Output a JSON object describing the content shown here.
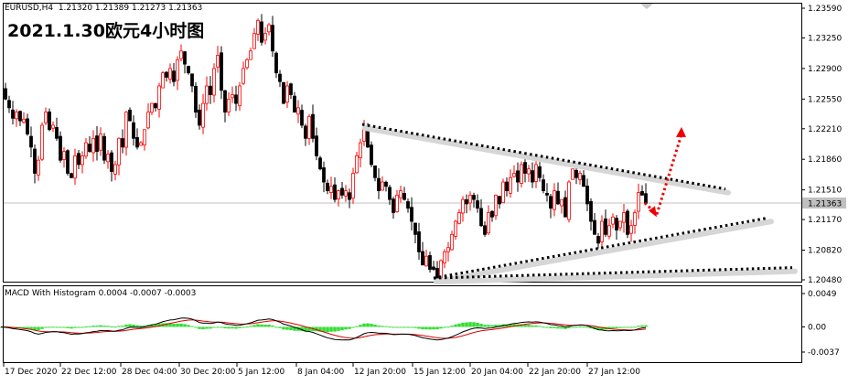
{
  "chart_title": "2021.1.30欧元4小时图",
  "symbol_line": "EURUSD,H4  1.21320 1.21389 1.21273 1.21363",
  "macd_label": "MACD With Histogram 0.0004 -0.0007 -0.0003",
  "current_price": "1.21363",
  "colors": {
    "bull_candle": "#ff0000",
    "bear_candle": "#000000",
    "histogram": "#33dd33",
    "macd_line": "#000000",
    "signal_line": "#dd0000",
    "trendline": "#000000",
    "arrow": "#ee0000",
    "price_box_bg": "#c0c0c0"
  },
  "price_axis": {
    "labels": [
      "1.23590",
      "1.23250",
      "1.22900",
      "1.22550",
      "1.22210",
      "1.21860",
      "1.21510",
      "1.21170",
      "1.20820",
      "1.20480"
    ]
  },
  "macd_axis": {
    "labels": [
      "0.0049",
      "0.00",
      "-0.0037"
    ]
  },
  "time_axis": {
    "labels": [
      "17 Dec 2020",
      "22 Dec 12:00",
      "28 Dec 04:00",
      "30 Dec 20:00",
      "5 Jan 12:00",
      "8 Jan 04:00",
      "12 Jan 20:00",
      "15 Jan 12:00",
      "20 Jan 04:00",
      "22 Jan 20:00",
      "27 Jan 12:00"
    ]
  },
  "chart_data": {
    "type": "candlestick",
    "title": "2021.1.30欧元4小时图",
    "symbol": "EURUSD",
    "timeframe": "H4",
    "last_bar": {
      "open": 1.2132,
      "high": 1.21389,
      "low": 1.21273,
      "close": 1.21363
    },
    "ylim": [
      1.2045,
      1.2362
    ],
    "y_ticks": [
      1.2359,
      1.2325,
      1.229,
      1.2255,
      1.2221,
      1.2186,
      1.2151,
      1.2117,
      1.2082,
      1.2048
    ],
    "x_tick_labels": [
      "17 Dec 2020",
      "22 Dec 12:00",
      "28 Dec 04:00",
      "30 Dec 20:00",
      "5 Jan 12:00",
      "8 Jan 04:00",
      "12 Jan 20:00",
      "15 Jan 12:00",
      "20 Jan 04:00",
      "22 Jan 20:00",
      "27 Jan 12:00"
    ],
    "close_path": [
      [
        1,
        1.2267
      ],
      [
        6,
        1.2255
      ],
      [
        10,
        1.2245
      ],
      [
        14,
        1.2233
      ],
      [
        18,
        1.224
      ],
      [
        22,
        1.223
      ],
      [
        26,
        1.2232
      ],
      [
        30,
        1.2215
      ],
      [
        34,
        1.22
      ],
      [
        38,
        1.217
      ],
      [
        42,
        1.2185
      ],
      [
        46,
        1.2225
      ],
      [
        50,
        1.224
      ],
      [
        54,
        1.222
      ],
      [
        58,
        1.2225
      ],
      [
        62,
        1.221
      ],
      [
        66,
        1.2185
      ],
      [
        70,
        1.2195
      ],
      [
        74,
        1.217
      ],
      [
        78,
        1.2165
      ],
      [
        82,
        1.219
      ],
      [
        86,
        1.218
      ],
      [
        90,
        1.219
      ],
      [
        94,
        1.2205
      ],
      [
        98,
        1.2195
      ],
      [
        102,
        1.221
      ],
      [
        106,
        1.2195
      ],
      [
        110,
        1.2215
      ],
      [
        114,
        1.2185
      ],
      [
        118,
        1.2192
      ],
      [
        122,
        1.2172
      ],
      [
        126,
        1.218
      ],
      [
        130,
        1.221
      ],
      [
        134,
        1.22
      ],
      [
        138,
        1.224
      ],
      [
        142,
        1.223
      ],
      [
        146,
        1.221
      ],
      [
        150,
        1.22
      ],
      [
        154,
        1.2205
      ],
      [
        158,
        1.222
      ],
      [
        162,
        1.224
      ],
      [
        166,
        1.225
      ],
      [
        170,
        1.2245
      ],
      [
        174,
        1.227
      ],
      [
        178,
        1.2285
      ],
      [
        182,
        1.228
      ],
      [
        186,
        1.229
      ],
      [
        190,
        1.2275
      ],
      [
        194,
        1.23
      ],
      [
        198,
        1.231
      ],
      [
        202,
        1.2295
      ],
      [
        206,
        1.2285
      ],
      [
        210,
        1.227
      ],
      [
        214,
        1.224
      ],
      [
        218,
        1.2225
      ],
      [
        222,
        1.225
      ],
      [
        226,
        1.227
      ],
      [
        230,
        1.226
      ],
      [
        234,
        1.229
      ],
      [
        238,
        1.2305
      ],
      [
        242,
        1.2265
      ],
      [
        246,
        1.224
      ],
      [
        250,
        1.2255
      ],
      [
        254,
        1.226
      ],
      [
        258,
        1.225
      ],
      [
        262,
        1.227
      ],
      [
        266,
        1.229
      ],
      [
        270,
        1.23
      ],
      [
        274,
        1.231
      ],
      [
        278,
        1.233
      ],
      [
        282,
        1.2345
      ],
      [
        286,
        1.232
      ],
      [
        290,
        1.233
      ],
      [
        294,
        1.234
      ],
      [
        298,
        1.231
      ],
      [
        302,
        1.2285
      ],
      [
        306,
        1.2275
      ],
      [
        310,
        1.225
      ],
      [
        314,
        1.227
      ],
      [
        318,
        1.226
      ],
      [
        322,
        1.224
      ],
      [
        326,
        1.2245
      ],
      [
        330,
        1.2225
      ],
      [
        334,
        1.221
      ],
      [
        338,
        1.2235
      ],
      [
        342,
        1.221
      ],
      [
        346,
        1.219
      ],
      [
        350,
        1.2175
      ],
      [
        354,
        1.216
      ],
      [
        358,
        1.215
      ],
      [
        362,
        1.2155
      ],
      [
        366,
        1.214
      ],
      [
        370,
        1.215
      ],
      [
        374,
        1.2145
      ],
      [
        378,
        1.215
      ],
      [
        382,
        1.214
      ],
      [
        386,
        1.217
      ],
      [
        390,
        1.219
      ],
      [
        394,
        1.2205
      ],
      [
        398,
        1.222
      ],
      [
        402,
        1.22
      ],
      [
        406,
        1.218
      ],
      [
        410,
        1.2165
      ],
      [
        414,
        1.215
      ],
      [
        418,
        1.216
      ],
      [
        422,
        1.2155
      ],
      [
        426,
        1.214
      ],
      [
        430,
        1.2125
      ],
      [
        434,
        1.2145
      ],
      [
        438,
        1.215
      ],
      [
        442,
        1.214
      ],
      [
        446,
        1.213
      ],
      [
        450,
        1.2115
      ],
      [
        454,
        1.21
      ],
      [
        458,
        1.208
      ],
      [
        462,
        1.2065
      ],
      [
        466,
        1.2075
      ],
      [
        470,
        1.206
      ],
      [
        474,
        1.206
      ],
      [
        478,
        1.205
      ],
      [
        482,
        1.207
      ],
      [
        486,
        1.208
      ],
      [
        490,
        1.2085
      ],
      [
        494,
        1.21
      ],
      [
        498,
        1.2115
      ],
      [
        502,
        1.2125
      ],
      [
        506,
        1.214
      ],
      [
        510,
        1.2135
      ],
      [
        514,
        1.2145
      ],
      [
        518,
        1.214
      ],
      [
        522,
        1.213
      ],
      [
        526,
        1.211
      ],
      [
        530,
        1.21
      ],
      [
        534,
        1.2125
      ],
      [
        538,
        1.212
      ],
      [
        542,
        1.2145
      ],
      [
        546,
        1.2135
      ],
      [
        550,
        1.216
      ],
      [
        554,
        1.215
      ],
      [
        558,
        1.2165
      ],
      [
        562,
        1.217
      ],
      [
        566,
        1.216
      ],
      [
        570,
        1.218
      ],
      [
        574,
        1.217
      ],
      [
        578,
        1.2175
      ],
      [
        582,
        1.216
      ],
      [
        586,
        1.218
      ],
      [
        590,
        1.2165
      ],
      [
        594,
        1.215
      ],
      [
        598,
        1.2145
      ],
      [
        602,
        1.213
      ],
      [
        606,
        1.215
      ],
      [
        610,
        1.2135
      ],
      [
        614,
        1.214
      ],
      [
        618,
        1.212
      ],
      [
        622,
        1.216
      ],
      [
        626,
        1.2175
      ],
      [
        630,
        1.2165
      ],
      [
        634,
        1.217
      ],
      [
        638,
        1.2155
      ],
      [
        642,
        1.2135
      ],
      [
        646,
        1.2115
      ],
      [
        650,
        1.21
      ],
      [
        654,
        1.209
      ],
      [
        658,
        1.2115
      ],
      [
        662,
        1.21
      ],
      [
        666,
        1.211
      ],
      [
        670,
        1.212
      ],
      [
        674,
        1.2105
      ],
      [
        678,
        1.2115
      ],
      [
        682,
        1.2125
      ],
      [
        686,
        1.21
      ],
      [
        690,
        1.211
      ],
      [
        694,
        1.2125
      ],
      [
        698,
        1.2148
      ],
      [
        702,
        1.2145
      ],
      [
        706,
        1.2136
      ]
    ],
    "trendlines": [
      {
        "from": [
          396,
          1.2226
        ],
        "to": [
          793,
          1.2152
        ]
      },
      {
        "from": [
          474,
          1.205
        ],
        "to": [
          840,
          1.2119
        ]
      },
      {
        "from": [
          474,
          1.205
        ],
        "to": [
          866,
          1.2062
        ]
      }
    ],
    "projection_arrow": {
      "from": [
        705,
        1.2136
      ],
      "to": [
        745,
        1.2223
      ],
      "via": [
        718,
        1.2123
      ]
    },
    "macd": {
      "ylim": [
        -0.004,
        0.0052
      ],
      "y_ticks": [
        0.0049,
        0.0,
        -0.0037
      ],
      "last": {
        "macd": 0.0004,
        "signal": -0.0007,
        "histogram": -0.0003
      }
    }
  }
}
